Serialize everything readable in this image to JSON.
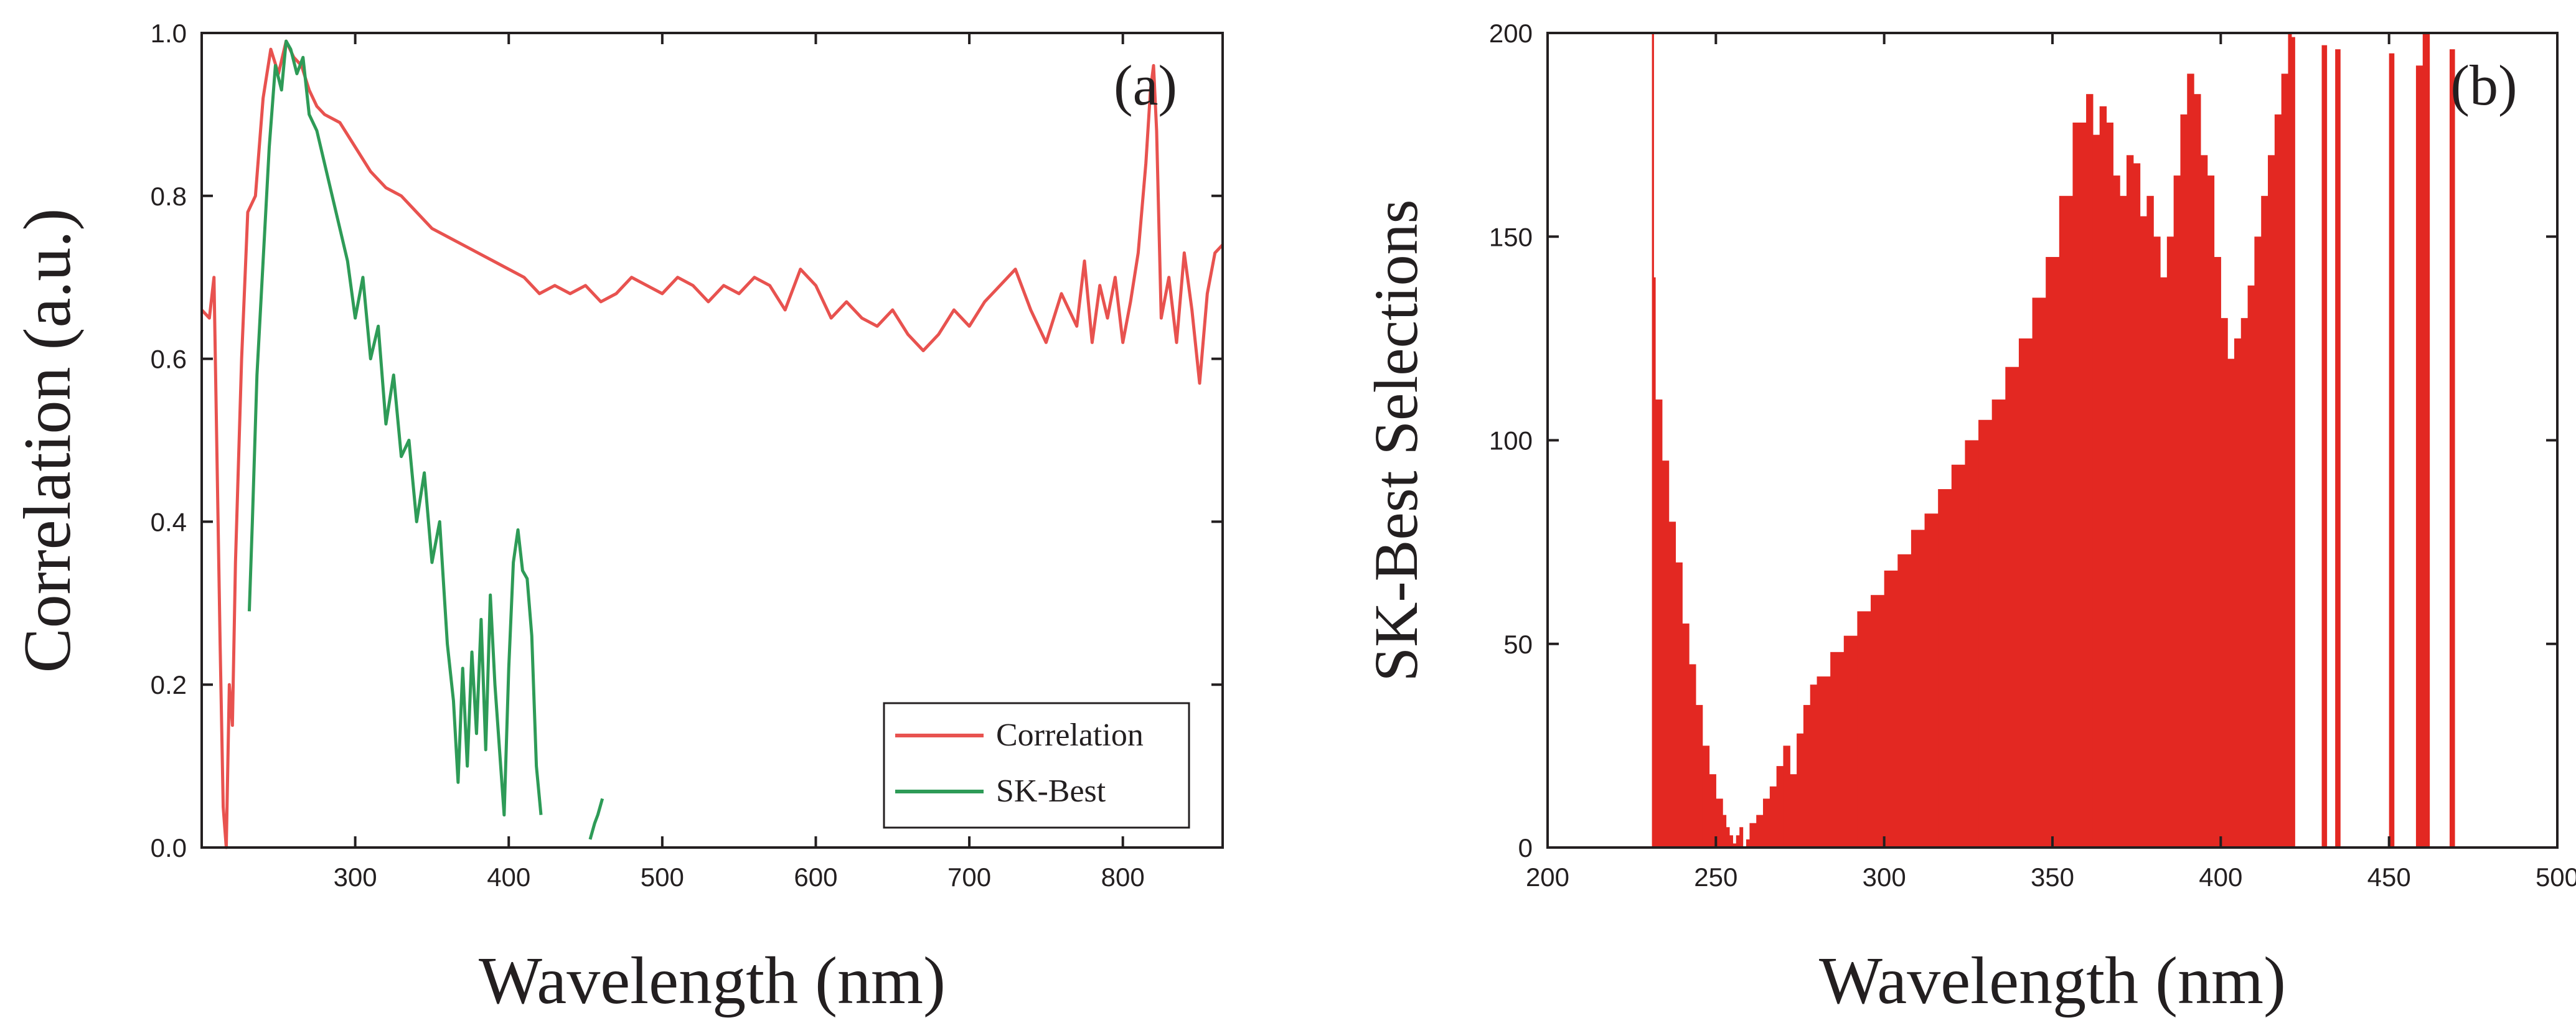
{
  "figure": {
    "panels": [
      "(a)",
      "(b)"
    ]
  },
  "chart_data": [
    {
      "type": "line",
      "panel_label": "(a)",
      "title": "",
      "xlabel": "Wavelength (nm)",
      "ylabel": "Correlation (a.u.)",
      "xlim": [
        200,
        865
      ],
      "ylim": [
        0,
        1.0
      ],
      "xticks": [
        300,
        400,
        500,
        600,
        700,
        800
      ],
      "xtick_labels": [
        "300",
        "400",
        "500",
        "600",
        "700",
        "800"
      ],
      "yticks": [
        0.0,
        0.2,
        0.4,
        0.6,
        0.8,
        1.0
      ],
      "ytick_labels": [
        "0.0",
        "0.2",
        "0.4",
        "0.6",
        "0.8",
        "1.0"
      ],
      "legend": {
        "position": "bottom-right",
        "entries": [
          "Correlation",
          "SK-Best"
        ]
      },
      "series": [
        {
          "name": "Correlation",
          "color": "#e8524f",
          "x": [
            200,
            205,
            208,
            212,
            214,
            216,
            218,
            220,
            222,
            226,
            230,
            235,
            240,
            245,
            250,
            255,
            260,
            265,
            270,
            275,
            280,
            290,
            300,
            310,
            320,
            330,
            340,
            350,
            360,
            370,
            380,
            390,
            400,
            410,
            420,
            430,
            440,
            450,
            460,
            470,
            480,
            490,
            500,
            510,
            520,
            530,
            540,
            550,
            560,
            570,
            580,
            590,
            600,
            610,
            620,
            630,
            640,
            650,
            660,
            670,
            680,
            690,
            700,
            710,
            720,
            730,
            740,
            750,
            760,
            770,
            775,
            780,
            785,
            790,
            795,
            800,
            805,
            810,
            815,
            818,
            820,
            822,
            825,
            830,
            835,
            840,
            845,
            850,
            855,
            860,
            865
          ],
          "y": [
            0.66,
            0.65,
            0.7,
            0.25,
            0.05,
            0.0,
            0.2,
            0.15,
            0.35,
            0.6,
            0.78,
            0.8,
            0.92,
            0.98,
            0.95,
            0.99,
            0.97,
            0.96,
            0.93,
            0.91,
            0.9,
            0.89,
            0.86,
            0.83,
            0.81,
            0.8,
            0.78,
            0.76,
            0.75,
            0.74,
            0.73,
            0.72,
            0.71,
            0.7,
            0.68,
            0.69,
            0.68,
            0.69,
            0.67,
            0.68,
            0.7,
            0.69,
            0.68,
            0.7,
            0.69,
            0.67,
            0.69,
            0.68,
            0.7,
            0.69,
            0.66,
            0.71,
            0.69,
            0.65,
            0.67,
            0.65,
            0.64,
            0.66,
            0.63,
            0.61,
            0.63,
            0.66,
            0.64,
            0.67,
            0.69,
            0.71,
            0.66,
            0.62,
            0.68,
            0.64,
            0.72,
            0.62,
            0.69,
            0.65,
            0.7,
            0.62,
            0.67,
            0.73,
            0.84,
            0.93,
            0.96,
            0.88,
            0.65,
            0.7,
            0.62,
            0.73,
            0.66,
            0.57,
            0.68,
            0.73,
            0.74
          ]
        },
        {
          "name": "SK-Best",
          "color": "#2e9b57",
          "segments": [
            {
              "x": [
                231,
                233,
                236,
                240,
                244,
                248,
                252,
                255,
                258,
                262,
                266,
                270,
                275,
                280,
                285,
                290,
                295,
                300,
                305,
                310,
                315,
                320,
                325,
                330,
                335,
                340,
                345,
                350,
                355,
                360,
                364,
                367,
                370,
                373,
                376,
                379,
                382,
                385,
                388,
                391,
                394,
                397,
                400,
                403,
                406,
                409,
                412,
                415,
                418,
                421
              ],
              "y": [
                0.29,
                0.4,
                0.58,
                0.72,
                0.86,
                0.96,
                0.93,
                0.99,
                0.98,
                0.95,
                0.97,
                0.9,
                0.88,
                0.84,
                0.8,
                0.76,
                0.72,
                0.65,
                0.7,
                0.6,
                0.64,
                0.52,
                0.58,
                0.48,
                0.5,
                0.4,
                0.46,
                0.35,
                0.4,
                0.25,
                0.18,
                0.08,
                0.22,
                0.1,
                0.24,
                0.14,
                0.28,
                0.12,
                0.31,
                0.2,
                0.12,
                0.04,
                0.22,
                0.35,
                0.39,
                0.34,
                0.33,
                0.26,
                0.1,
                0.04
              ]
            },
            {
              "x": [
                453,
                456,
                458,
                461
              ],
              "y": [
                0.01,
                0.03,
                0.04,
                0.06
              ]
            }
          ]
        }
      ]
    },
    {
      "type": "bar",
      "panel_label": "(b)",
      "title": "",
      "xlabel": "Wavelength (nm)",
      "ylabel": "SK-Best Selections",
      "xlim": [
        200,
        500
      ],
      "ylim": [
        0,
        200
      ],
      "xticks": [
        200,
        250,
        300,
        350,
        400,
        450,
        500
      ],
      "xtick_labels": [
        "200",
        "250",
        "300",
        "350",
        "400",
        "450",
        "500"
      ],
      "yticks": [
        0,
        50,
        100,
        150,
        200
      ],
      "ytick_labels": [
        "0",
        "50",
        "100",
        "150",
        "200"
      ],
      "series": [
        {
          "name": "SK-Best Selections",
          "color": "#e32822",
          "x": [
            231,
            231.5,
            232,
            234,
            236,
            238,
            240,
            242,
            244,
            246,
            248,
            250,
            252,
            253,
            254,
            255,
            256,
            257,
            258,
            259,
            260,
            262,
            264,
            266,
            268,
            270,
            272,
            274,
            276,
            278,
            280,
            284,
            288,
            292,
            296,
            300,
            304,
            308,
            312,
            316,
            320,
            324,
            328,
            332,
            336,
            340,
            344,
            348,
            352,
            356,
            360,
            362,
            364,
            366,
            368,
            370,
            372,
            374,
            376,
            378,
            380,
            382,
            384,
            386,
            388,
            390,
            392,
            394,
            396,
            398,
            400,
            402,
            404,
            406,
            408,
            410,
            412,
            414,
            416,
            418,
            420,
            421,
            422,
            425,
            428,
            430,
            432,
            434,
            436,
            438,
            440,
            445,
            450,
            455,
            458,
            460,
            462,
            465,
            468,
            470,
            472,
            475
          ],
          "y": [
            200,
            140,
            110,
            95,
            80,
            70,
            55,
            45,
            35,
            25,
            18,
            12,
            8,
            5,
            3,
            1,
            3,
            5,
            0,
            2,
            6,
            8,
            12,
            15,
            20,
            25,
            18,
            28,
            35,
            40,
            42,
            48,
            52,
            58,
            62,
            68,
            72,
            78,
            82,
            88,
            94,
            100,
            105,
            110,
            118,
            125,
            135,
            145,
            160,
            178,
            185,
            175,
            182,
            178,
            165,
            160,
            170,
            168,
            155,
            160,
            150,
            140,
            150,
            165,
            180,
            190,
            185,
            170,
            165,
            145,
            130,
            120,
            125,
            130,
            138,
            150,
            160,
            170,
            180,
            190,
            200,
            199,
            0,
            0,
            0,
            197,
            0,
            196,
            0,
            0,
            0,
            0,
            195,
            0,
            192,
            200,
            0,
            0,
            196,
            0,
            0,
            0
          ]
        }
      ]
    }
  ]
}
